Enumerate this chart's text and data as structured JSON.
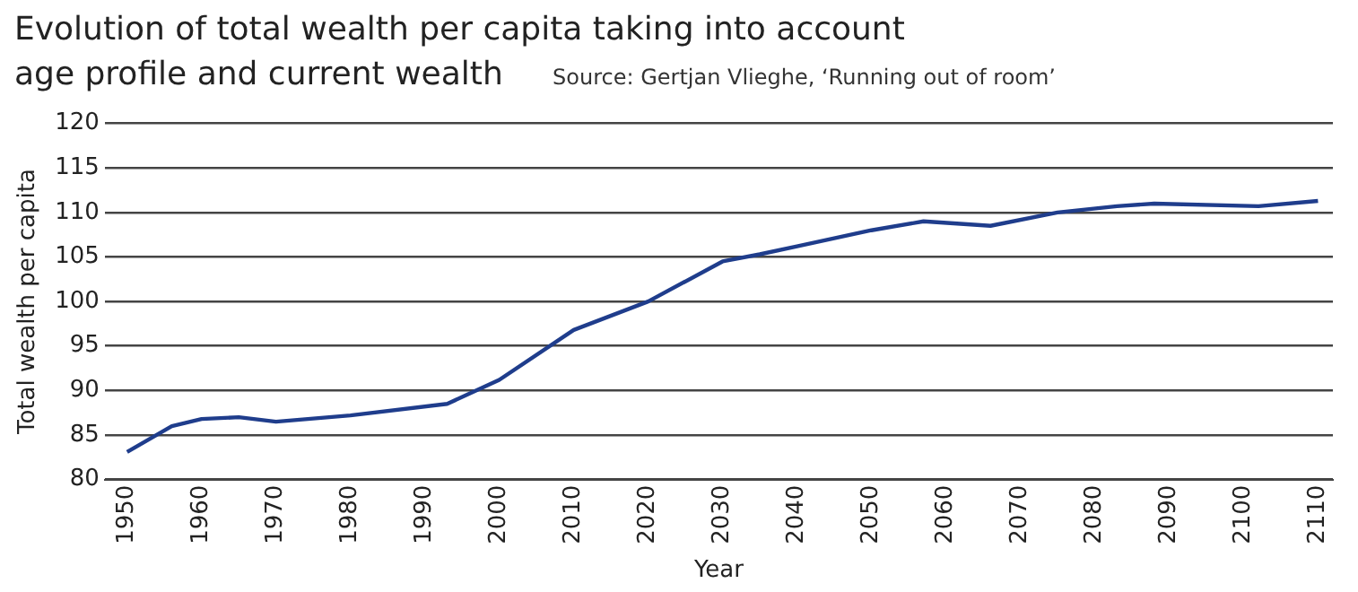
{
  "chart_data": {
    "type": "line",
    "title": "Evolution of total wealth per capita taking into account age profile and current wealth",
    "annotations": [
      "Source: Gertjan Vlieghe, ‘Running out of room’"
    ],
    "xlabel": "Year",
    "ylabel": "Total wealth per capita",
    "x": [
      1950,
      1956,
      1960,
      1965,
      1970,
      1980,
      1993,
      2000,
      2010,
      2020,
      2030,
      2035,
      2040,
      2050,
      2057,
      2066,
      2075,
      2083,
      2088,
      2102,
      2110
    ],
    "series": [
      {
        "color": "#1f3d8c",
        "values": [
          83.1,
          86,
          86.8,
          87,
          86.5,
          87.2,
          88.5,
          91.2,
          96.8,
          100,
          104.5,
          105.3,
          106.2,
          108,
          109,
          108.5,
          110,
          110.7,
          111,
          110.7,
          111.3
        ]
      }
    ],
    "xlim": [
      1947,
      2112
    ],
    "xticks": [
      1950,
      1960,
      1970,
      1980,
      1990,
      2000,
      2010,
      2020,
      2030,
      2040,
      2050,
      2060,
      2070,
      2080,
      2090,
      2100,
      2110
    ],
    "ylim": [
      80,
      120
    ],
    "yticks": [
      80,
      85,
      90,
      95,
      100,
      105,
      110,
      115,
      120
    ],
    "grid": "y",
    "legend": false,
    "marker": "none",
    "line_style": "solid"
  }
}
